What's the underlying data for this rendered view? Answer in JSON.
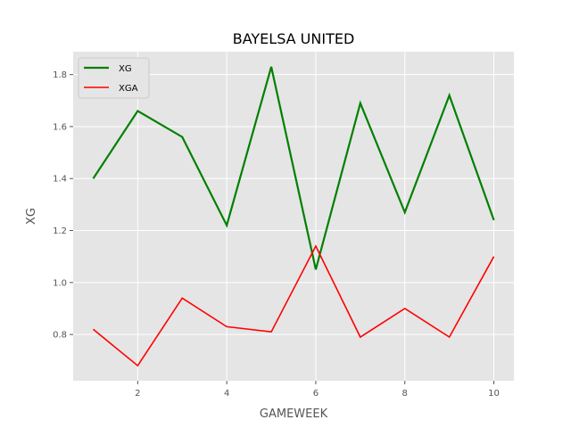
{
  "chart_data": {
    "type": "line",
    "title": "BAYELSA UNITED",
    "xlabel": "GAMEWEEK",
    "ylabel": "XG",
    "x": [
      1,
      2,
      3,
      4,
      5,
      6,
      7,
      8,
      9,
      10
    ],
    "series": [
      {
        "name": "XG",
        "values": [
          1.4,
          1.66,
          1.56,
          1.22,
          1.83,
          1.05,
          1.69,
          1.27,
          1.72,
          1.24
        ],
        "color": "#008000"
      },
      {
        "name": "XGA",
        "values": [
          0.82,
          0.68,
          0.94,
          0.83,
          0.81,
          1.14,
          0.79,
          0.9,
          0.79,
          1.1
        ],
        "color": "#ff0000"
      }
    ],
    "xlim": [
      0.55,
      10.45
    ],
    "ylim": [
      0.622,
      1.888
    ],
    "xticks": [
      2,
      4,
      6,
      8,
      10
    ],
    "xtick_labels": [
      "2",
      "4",
      "6",
      "8",
      "10"
    ],
    "yticks": [
      0.8,
      1.0,
      1.2,
      1.4,
      1.6,
      1.8
    ],
    "ytick_labels": [
      "0.8",
      "1.0",
      "1.2",
      "1.4",
      "1.6",
      "1.8"
    ],
    "grid": true,
    "legend_position": "top-left",
    "style": {
      "plot_background": "#e5e5e5",
      "grid_color": "#ffffff"
    }
  }
}
